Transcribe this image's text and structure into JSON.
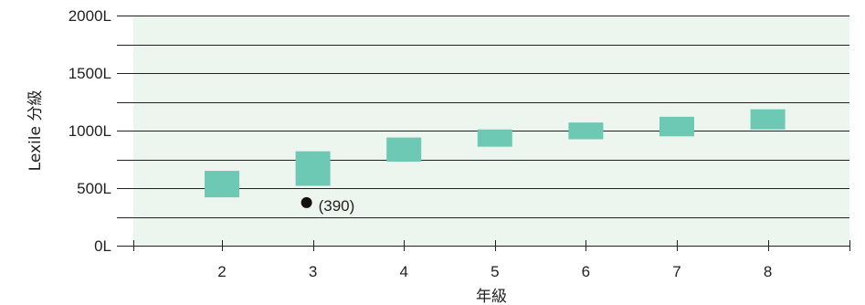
{
  "chart_data": {
    "type": "bar",
    "categories": [
      "2",
      "3",
      "4",
      "5",
      "6",
      "7",
      "8"
    ],
    "series": [
      {
        "ranges": [
          [
            420,
            650
          ],
          [
            520,
            820
          ],
          [
            730,
            940
          ],
          [
            860,
            1010
          ],
          [
            925,
            1070
          ],
          [
            950,
            1120
          ],
          [
            1010,
            1185
          ]
        ]
      }
    ],
    "yticks": [
      "0L",
      "500L",
      "1000L",
      "1500L",
      "2000L"
    ],
    "ylim": [
      0,
      2000
    ],
    "grid": true,
    "xlabel": "年級",
    "ylabel": "Lexile 分級",
    "annotation": {
      "category": "3",
      "value": 390,
      "label": "(390)"
    },
    "colors": {
      "bar": "#6dc8b4",
      "plot_background": "#edf5ef",
      "grid": "#222222",
      "marker": "#111111"
    }
  }
}
